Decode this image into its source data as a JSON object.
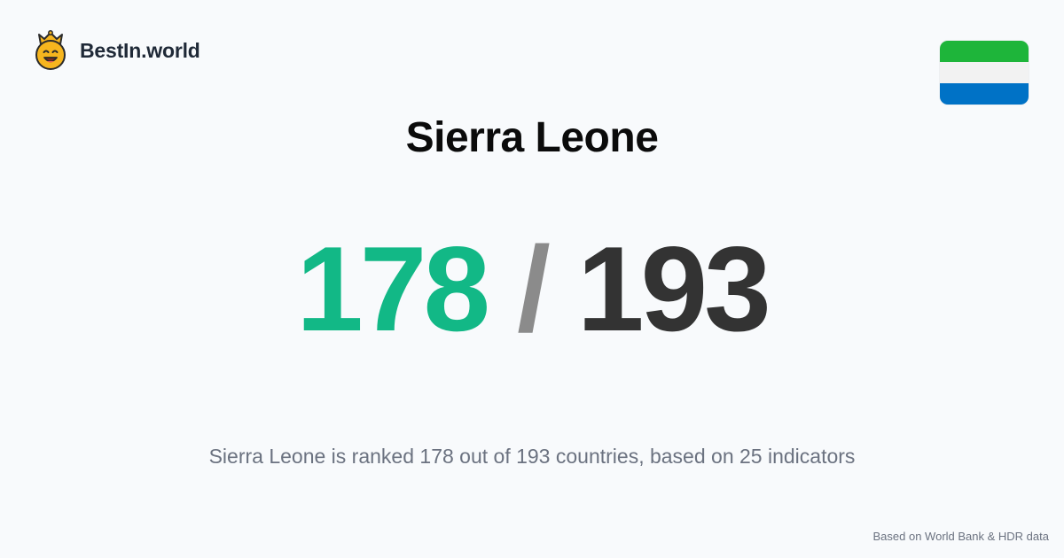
{
  "brand": {
    "name": "BestIn.world",
    "icon": "crowned-smiley-icon"
  },
  "country": {
    "name": "Sierra Leone",
    "flag": {
      "colors": [
        "#1eb53a",
        "#f2f2f2",
        "#0072c6"
      ]
    }
  },
  "ranking": {
    "rank": "178",
    "separator": "/",
    "total": "193",
    "summary": "Sierra Leone is ranked 178 out of 193 countries, based on 25 indicators"
  },
  "footer": {
    "source": "Based on World Bank & HDR data"
  },
  "colors": {
    "accent": "#12b886",
    "total": "#333333",
    "separator": "#8b8b8b",
    "background": "#f8fafc"
  }
}
